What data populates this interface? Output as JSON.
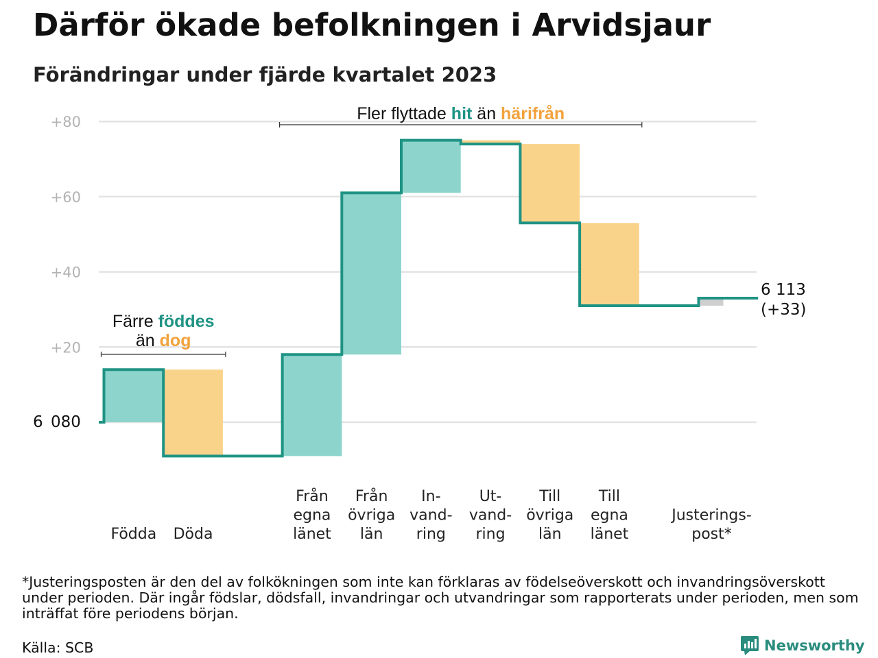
{
  "title": "Därför ökade befolkningen i Arvidsjaur",
  "subtitle": "Förändringar under fjärde kvartalet 2023",
  "footnote": "*Justeringsposten är den del av folkökningen som inte kan förklaras av födelseöverskott och invandringsöverskott under perioden. Där ingår födslar, dödsfall, invandringar och utvandringar som rapporterats under perioden, men som inträffat före periodens början.",
  "source": "Källa: SCB",
  "brand": "Newsworthy",
  "colors": {
    "increase": "#8dd5cc",
    "decrease": "#fad38b",
    "adjustment": "#cfcfcf",
    "line": "#1f9384",
    "grid": "#e3e3e3",
    "tick_text": "#b3b3b3",
    "teal_text": "#1f9384",
    "orange_text": "#f2a23c"
  },
  "chart_data": {
    "type": "waterfall",
    "base_population": 6080,
    "start_label": "6 080",
    "end_label_value": "6 113",
    "end_label_change": "(+33)",
    "ylim": [
      -10,
      82
    ],
    "yticks": [
      {
        "value": 20,
        "label": "+20"
      },
      {
        "value": 40,
        "label": "+40"
      },
      {
        "value": 60,
        "label": "+60"
      },
      {
        "value": 80,
        "label": "+80"
      }
    ],
    "steps": [
      {
        "label": [
          "Födda"
        ],
        "change": 14,
        "start": 0,
        "end": 14,
        "kind": "increase"
      },
      {
        "label": [
          "Döda"
        ],
        "change": -23,
        "start": 14,
        "end": -9,
        "kind": "decrease"
      },
      {
        "label": [],
        "change": 0,
        "start": -9,
        "end": -9,
        "kind": "gap"
      },
      {
        "label": [
          "Från",
          "egna",
          "länet"
        ],
        "change": 27,
        "start": -9,
        "end": 18,
        "kind": "increase"
      },
      {
        "label": [
          "Från",
          "övriga",
          "län"
        ],
        "change": 43,
        "start": 18,
        "end": 61,
        "kind": "increase"
      },
      {
        "label": [
          "In-",
          "vand-",
          "ring"
        ],
        "change": 14,
        "start": 61,
        "end": 75,
        "kind": "increase"
      },
      {
        "label": [
          "Ut-",
          "vand-",
          "ring"
        ],
        "change": -1,
        "start": 75,
        "end": 74,
        "kind": "decrease"
      },
      {
        "label": [
          "Till",
          "övriga",
          "län"
        ],
        "change": -21,
        "start": 74,
        "end": 53,
        "kind": "decrease"
      },
      {
        "label": [
          "Till",
          "egna",
          "länet"
        ],
        "change": -22,
        "start": 53,
        "end": 31,
        "kind": "decrease"
      },
      {
        "label": [],
        "change": 0,
        "start": 31,
        "end": 31,
        "kind": "gap"
      },
      {
        "label": [
          "Justerings-",
          "post*"
        ],
        "change": 2,
        "start": 31,
        "end": 33,
        "kind": "adjustment"
      }
    ],
    "annotations": [
      {
        "lines": [
          [
            {
              "text": "Färre ",
              "color": "plain"
            },
            {
              "text": "föddes",
              "color": "teal"
            }
          ],
          [
            {
              "text": "än ",
              "color": "plain"
            },
            {
              "text": "dog",
              "color": "orange"
            }
          ]
        ],
        "from_step": 0,
        "to_step": 1
      },
      {
        "lines": [
          [
            {
              "text": "Fler flyttade ",
              "color": "plain"
            },
            {
              "text": "hit",
              "color": "teal"
            },
            {
              "text": " än ",
              "color": "plain"
            },
            {
              "text": "härifrån",
              "color": "orange"
            }
          ]
        ],
        "from_step": 3,
        "to_step": 8
      }
    ]
  }
}
